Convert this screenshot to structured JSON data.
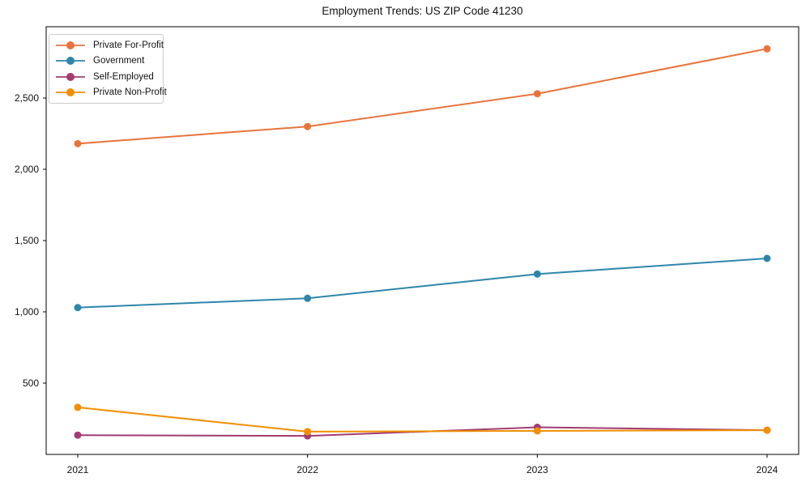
{
  "chart_data": {
    "type": "line",
    "title": "Employment Trends: US ZIP Code 41230",
    "xlabel": "",
    "ylabel": "",
    "categories": [
      "2021",
      "2022",
      "2023",
      "2024"
    ],
    "series": [
      {
        "name": "Private For-Profit",
        "color": "#E8743B",
        "values": [
          2180,
          2300,
          2530,
          2845
        ]
      },
      {
        "name": "Government",
        "color": "#2E86AB",
        "values": [
          1030,
          1095,
          1265,
          1375
        ]
      },
      {
        "name": "Self-Employed",
        "color": "#A23B72",
        "values": [
          135,
          130,
          190,
          170
        ]
      },
      {
        "name": "Private Non-Profit",
        "color": "#F18F01",
        "values": [
          330,
          160,
          165,
          170
        ]
      }
    ],
    "ylim": [
      0,
      3000
    ],
    "y_ticks": [
      {
        "value": 500,
        "label": "500"
      },
      {
        "value": 1000,
        "label": "1,000"
      },
      {
        "value": 1500,
        "label": "1,500"
      },
      {
        "value": 2000,
        "label": "2,000"
      },
      {
        "value": 2500,
        "label": "2,500"
      }
    ],
    "grid": false,
    "legend_position": "upper left",
    "axis_color": "#000000",
    "text_color": "#111111"
  }
}
